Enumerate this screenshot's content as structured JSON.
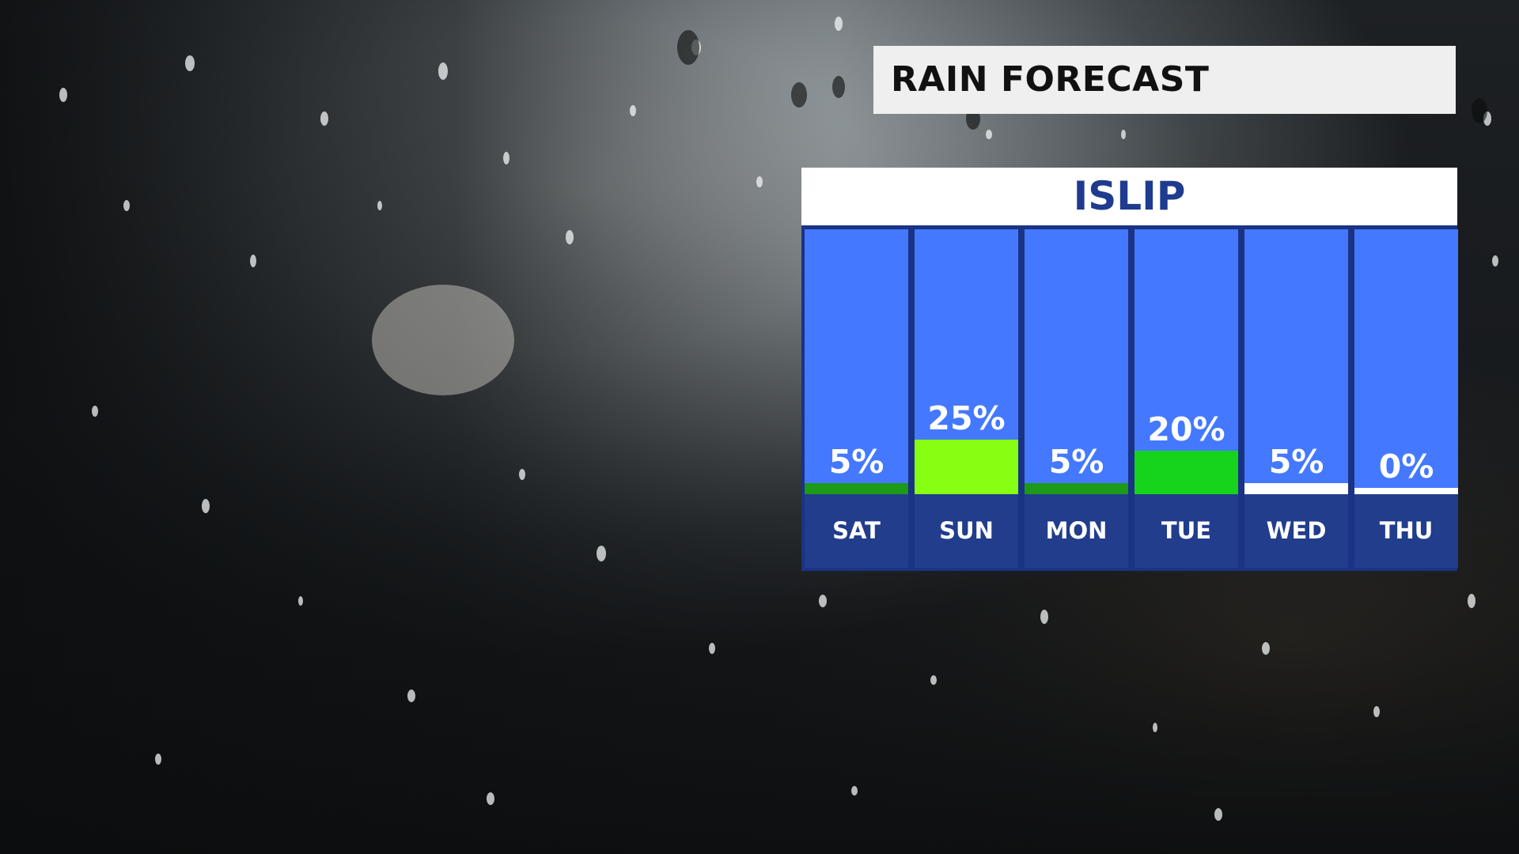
{
  "title": "RAIN FORECAST",
  "location": "ISLIP",
  "colors": {
    "panel_bg": "#4479ff",
    "day_band": "#213d8c",
    "title_text": "#111111",
    "location_text": "#1e3b8f"
  },
  "chart_data": {
    "type": "bar",
    "title": "RAIN FORECAST",
    "subtitle": "ISLIP",
    "categories": [
      "SAT",
      "SUN",
      "MON",
      "TUE",
      "WED",
      "THU"
    ],
    "values": [
      5,
      25,
      5,
      20,
      5,
      0
    ],
    "value_labels": [
      "5%",
      "25%",
      "5%",
      "20%",
      "5%",
      "0%"
    ],
    "bar_colors": [
      "#1c9a18",
      "#86ff12",
      "#1c9a18",
      "#16d41c",
      "#ffffff",
      "#ffffff"
    ],
    "unit": "%",
    "ylim": [
      0,
      100
    ]
  }
}
